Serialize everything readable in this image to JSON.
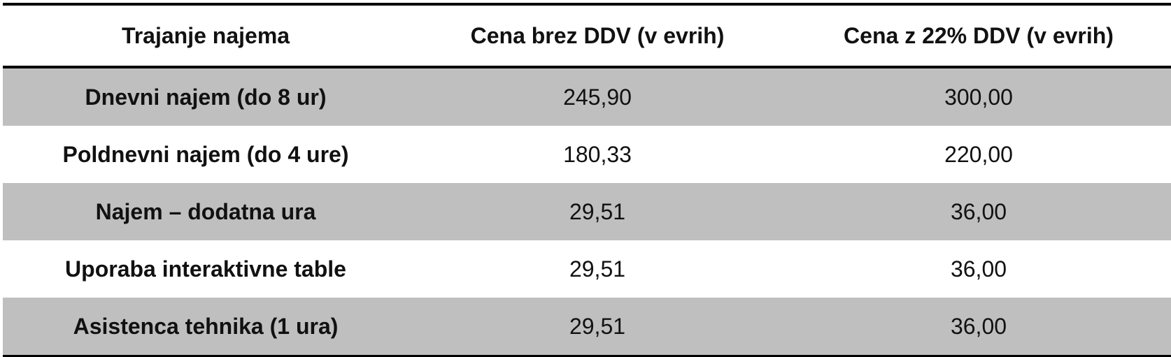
{
  "table": {
    "headers": [
      "Trajanje najema",
      "Cena brez DDV (v evrih)",
      "Cena z 22% DDV (v evrih)"
    ],
    "rows": [
      {
        "label": "Dnevni najem (do 8 ur)",
        "net": "245,90",
        "gross": "300,00"
      },
      {
        "label": "Poldnevni najem (do 4 ure)",
        "net": "180,33",
        "gross": "220,00"
      },
      {
        "label": "Najem – dodatna ura",
        "net": "29,51",
        "gross": "36,00"
      },
      {
        "label": "Uporaba interaktivne table",
        "net": "29,51",
        "gross": "36,00"
      },
      {
        "label": "Asistenca tehnika (1 ura)",
        "net": "29,51",
        "gross": "36,00"
      }
    ],
    "colors": {
      "shaded_row": "#bfbfbf",
      "border": "#000000",
      "text": "#111111"
    }
  }
}
